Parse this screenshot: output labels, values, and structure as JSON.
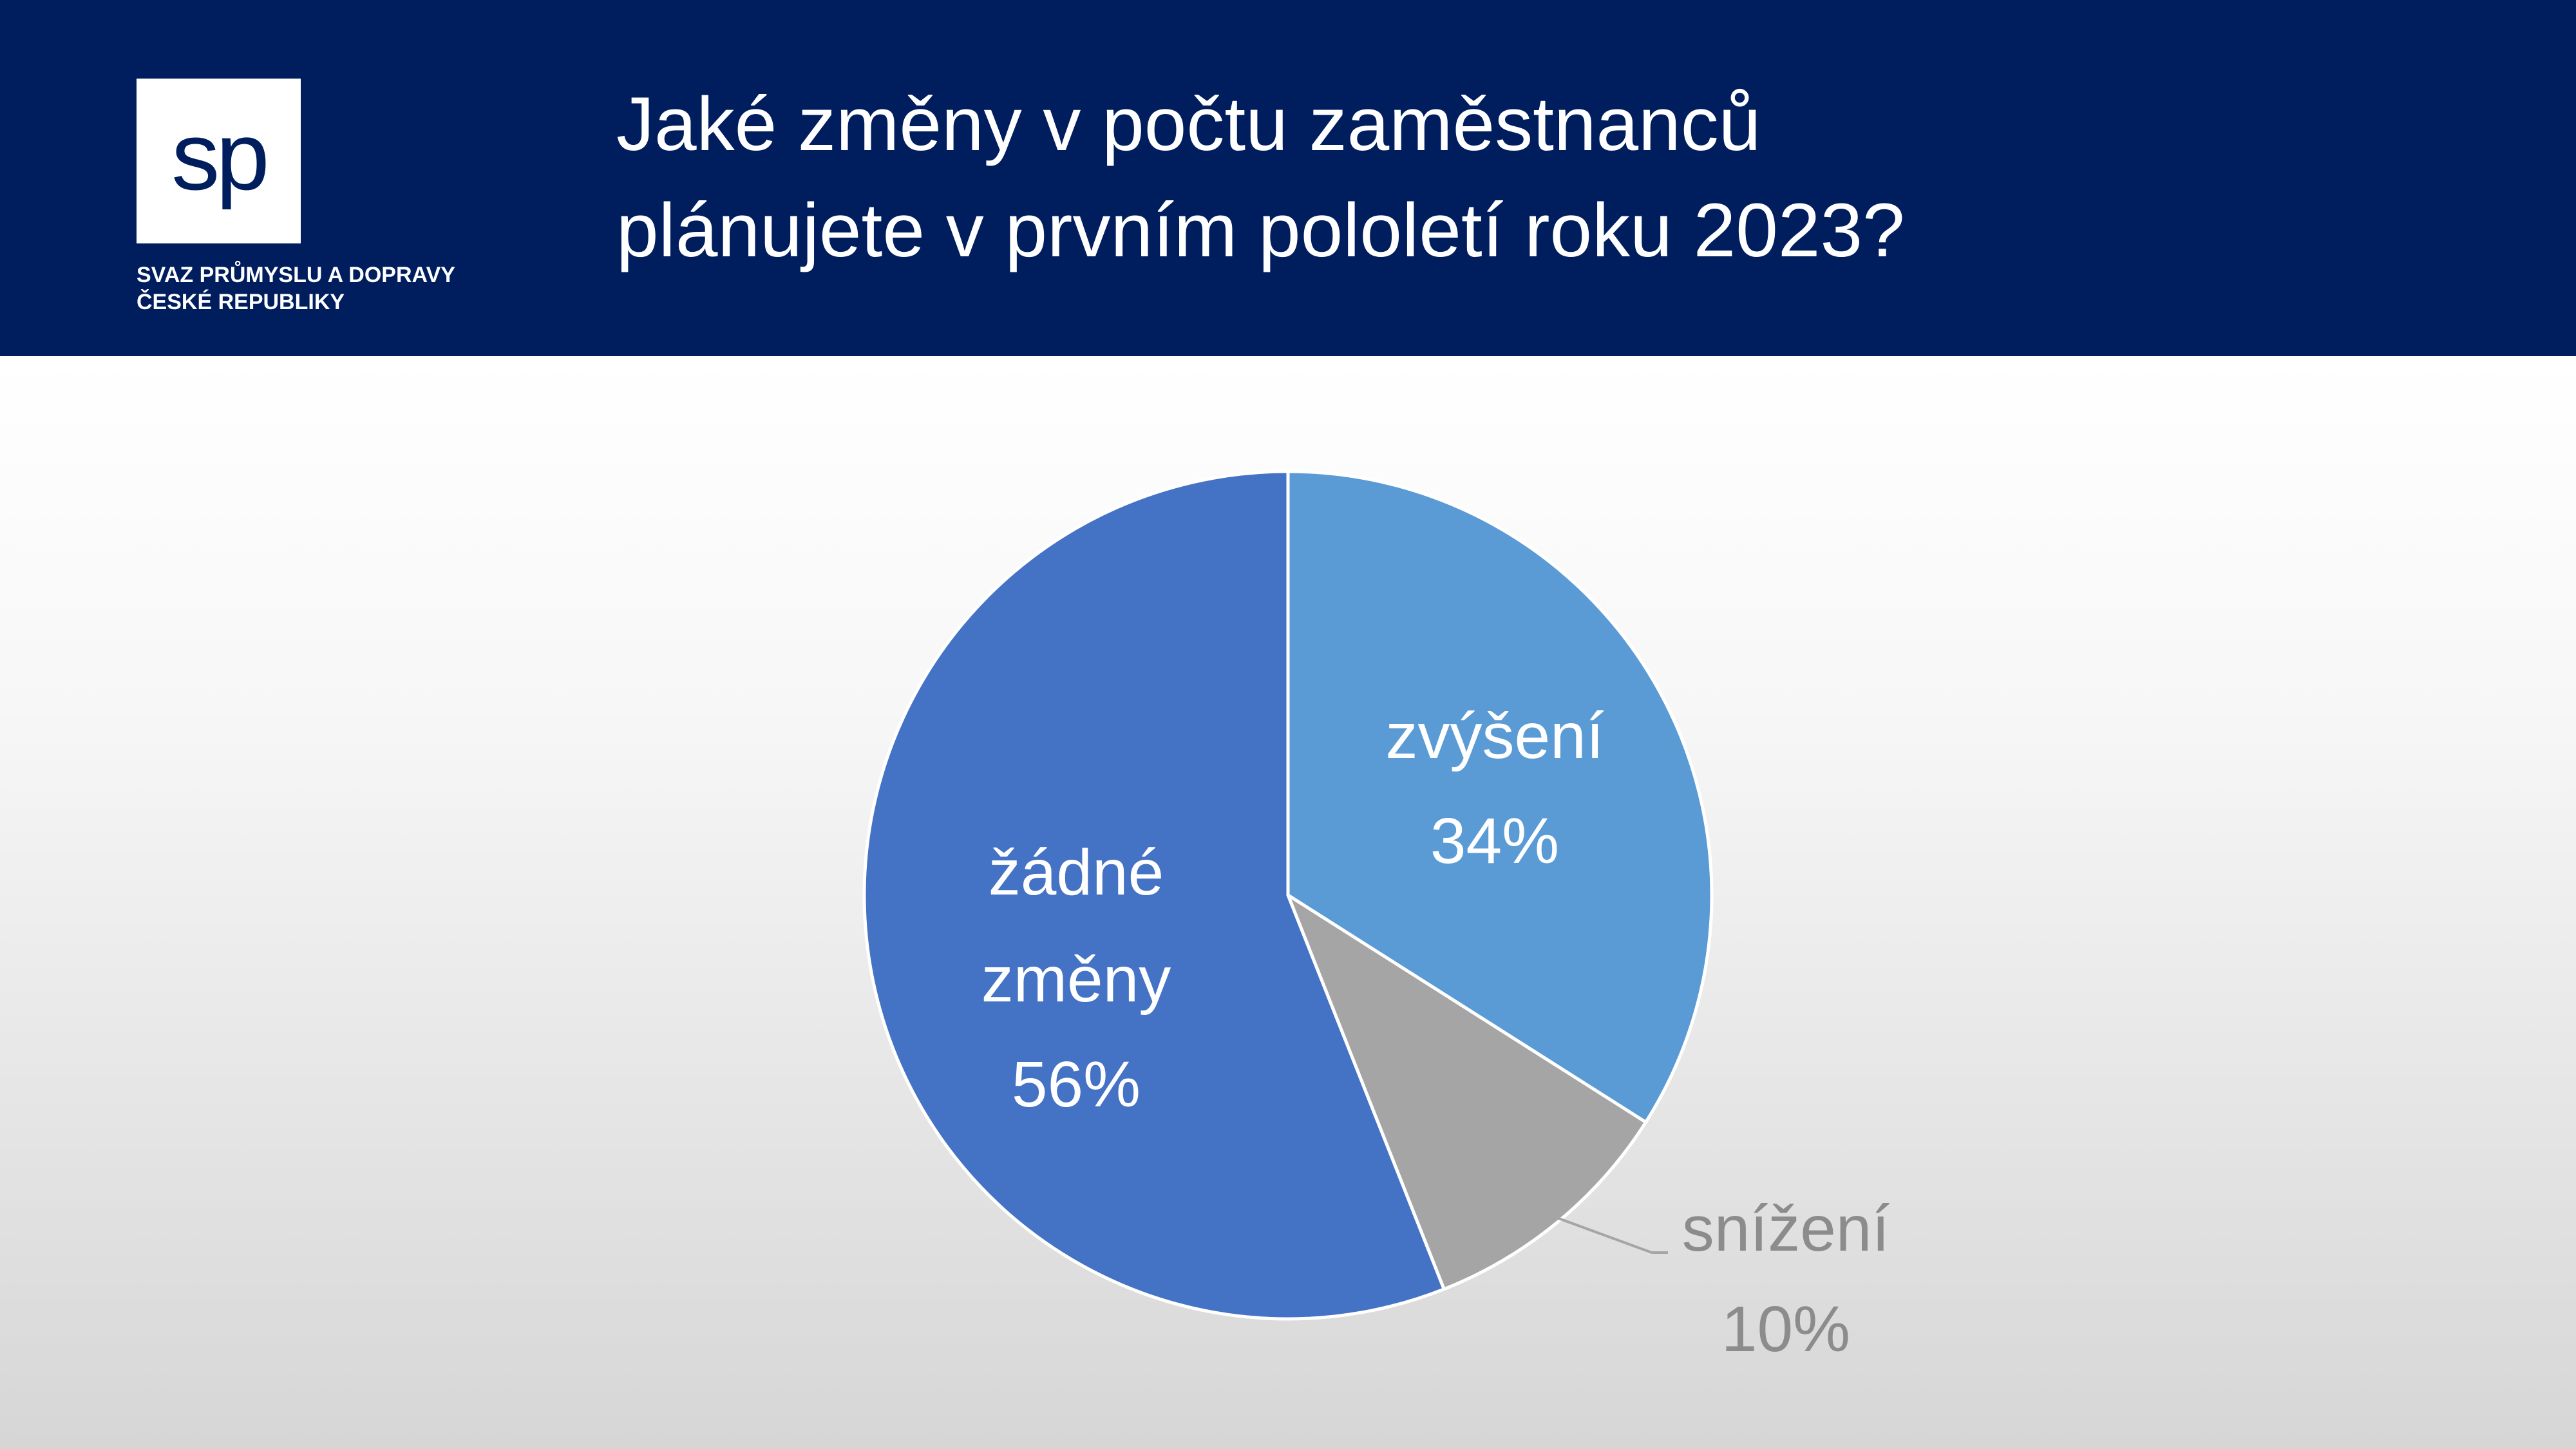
{
  "header": {
    "logo": "sp",
    "organization": [
      "SVAZ PRŮMYSLU A DOPRAVY",
      "ČESKÉ REPUBLIKY"
    ]
  },
  "chart_data": {
    "type": "pie",
    "title": [
      "Jaké změny v počtu zaměstnanců",
      "plánujete v prvním pololetí roku 2023?"
    ],
    "categories": [
      "zvýšení",
      "snížení",
      "žádné změny"
    ],
    "values": [
      34,
      10,
      56
    ],
    "value_labels": [
      "34%",
      "10%",
      "56%"
    ],
    "colors": [
      "#5b9bd5",
      "#a5a5a5",
      "#4472c4"
    ]
  }
}
